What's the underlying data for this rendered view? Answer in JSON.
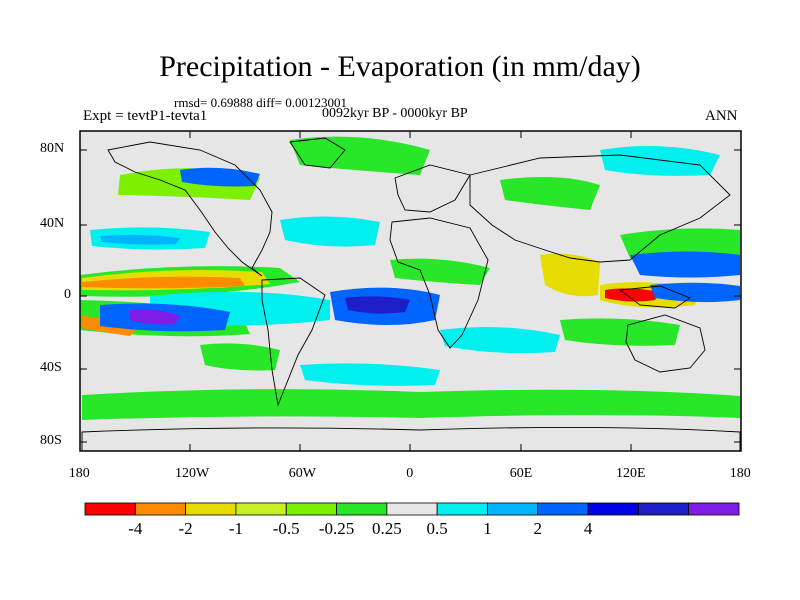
{
  "title": "Precipitation - Evaporation (in mm/day)",
  "stats": "rmsd= 0.69888 diff= 0.00123001",
  "period": "0092kyr BP - 0000kyr BP",
  "experiment": "Expt = tevtP1-tevta1",
  "season": "ANN",
  "lat_labels": [
    "80N",
    "40N",
    "0",
    "40S",
    "80S"
  ],
  "lon_labels": [
    "180",
    "120W",
    "60W",
    "0",
    "60E",
    "120E",
    "180"
  ],
  "colorbar": {
    "colors": [
      "#ff0000",
      "#ff8c00",
      "#e6dc00",
      "#c8f020",
      "#7df000",
      "#28e628",
      "#e6e6e6",
      "#00f0f0",
      "#00b4ff",
      "#0064ff",
      "#0000e6",
      "#1e1ec8",
      "#7d1ee6"
    ],
    "labels": [
      "-4",
      "-2",
      "-1",
      "-0.5",
      "-0.25",
      "0.25",
      "0.5",
      "1",
      "2",
      "4"
    ]
  },
  "map_background": "#e6e6e6"
}
